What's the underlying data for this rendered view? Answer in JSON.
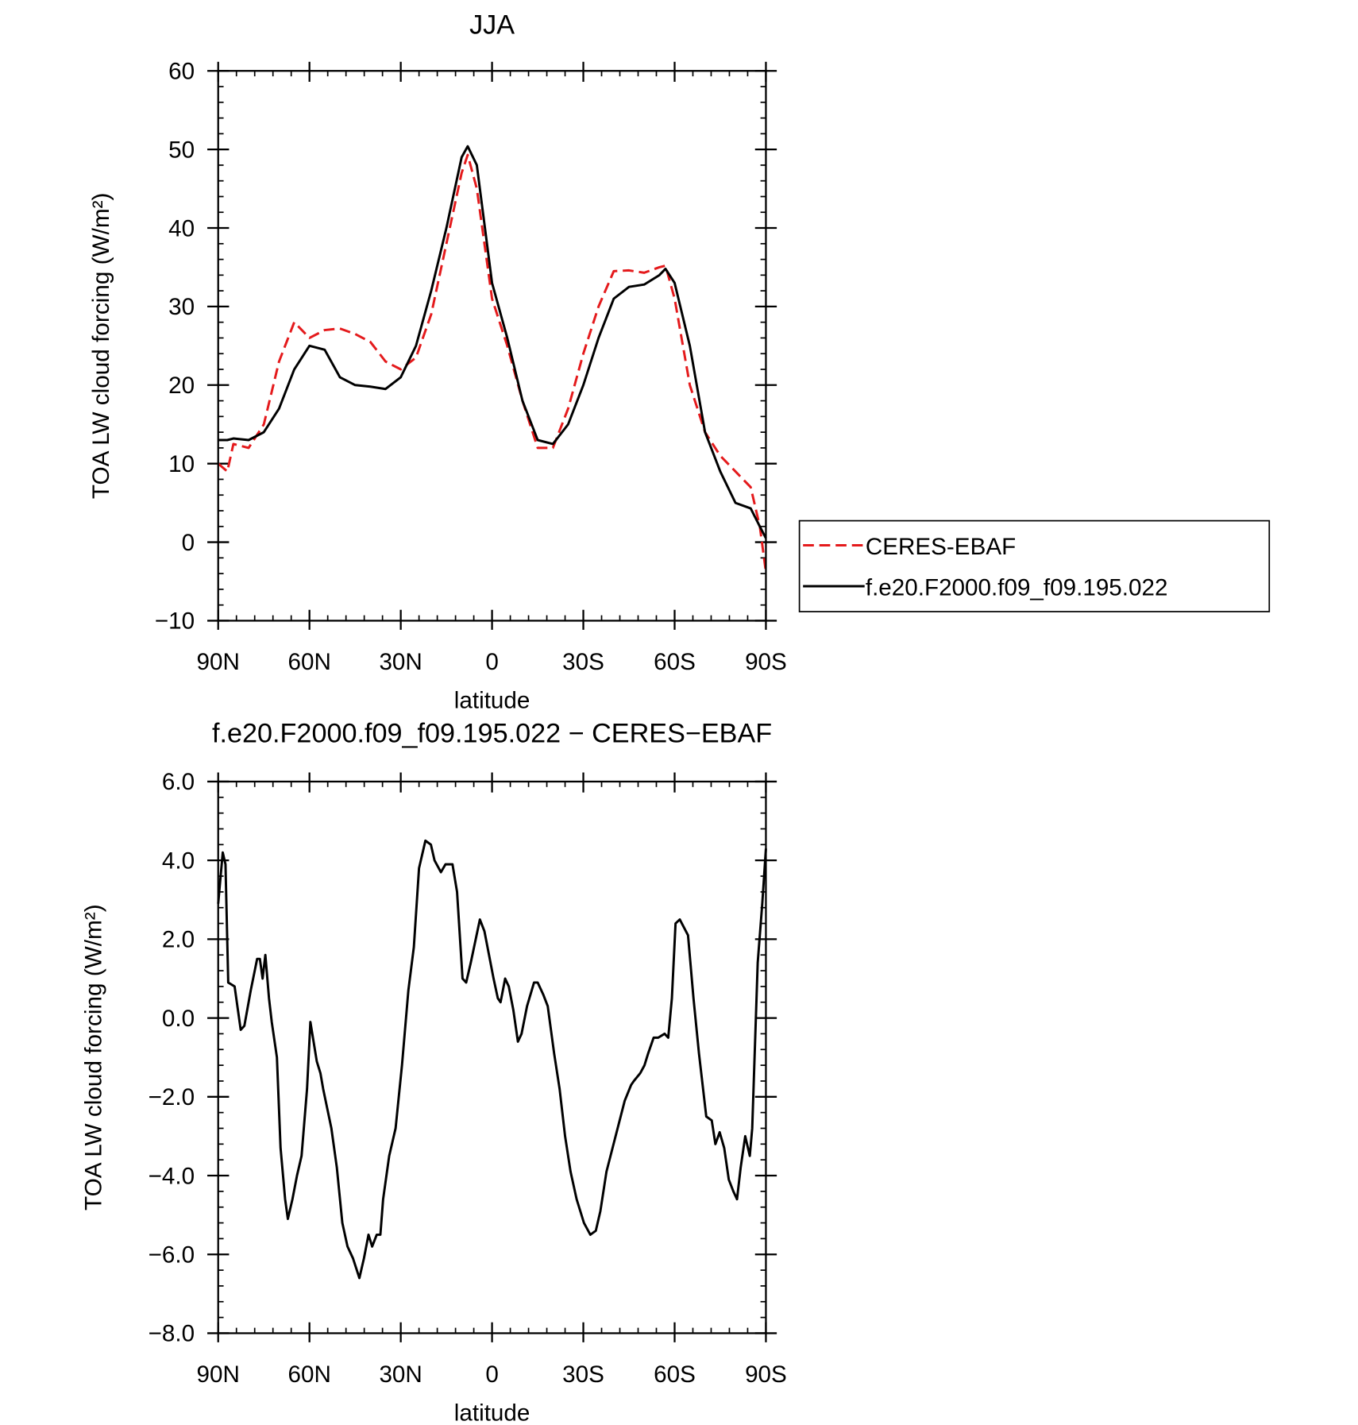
{
  "chart_data": [
    {
      "type": "line",
      "title": "JJA",
      "xlabel": "latitude",
      "ylabel": "TOA LW cloud forcing (W/m²)",
      "x": [
        90,
        87,
        85,
        80,
        75,
        70,
        65,
        60,
        55,
        50,
        45,
        40,
        35,
        30,
        25,
        20,
        15,
        10,
        8,
        5,
        0,
        -5,
        -10,
        -15,
        -20,
        -25,
        -30,
        -35,
        -40,
        -45,
        -50,
        -55,
        -57,
        -60,
        -65,
        -70,
        -75,
        -80,
        -85,
        -88,
        -90
      ],
      "series": [
        {
          "name": "CERES-EBAF",
          "color": "#e41a1c",
          "line_style": "dashed",
          "values": [
            10,
            9,
            12.5,
            12,
            15,
            23,
            28,
            26,
            27,
            27.2,
            26.5,
            25.5,
            23,
            22,
            23.5,
            29,
            38,
            47,
            49.3,
            45,
            31,
            25,
            18,
            12,
            12,
            17,
            24,
            30,
            34.5,
            34.6,
            34.3,
            35,
            35.2,
            31,
            20,
            14,
            11,
            9,
            7,
            2,
            -3.8
          ]
        },
        {
          "name": "f.e20.F2000.f09_f09.195.022",
          "color": "#000000",
          "line_style": "solid",
          "values": [
            13,
            13,
            13.2,
            13,
            14,
            17,
            22,
            25,
            24.5,
            21,
            20,
            19.8,
            19.5,
            21,
            25,
            32,
            40,
            49,
            50.4,
            48,
            33,
            26,
            18,
            13,
            12.5,
            15,
            20,
            26,
            31,
            32.5,
            32.8,
            34,
            34.8,
            33,
            25,
            14,
            9,
            5,
            4.3,
            2,
            0.5
          ]
        }
      ],
      "xlim": [
        90,
        -90
      ],
      "xticks": [
        {
          "value": 90,
          "label": "90N"
        },
        {
          "value": 60,
          "label": "60N"
        },
        {
          "value": 30,
          "label": "30N"
        },
        0,
        {
          "value": -30,
          "label": "30S"
        },
        {
          "value": -60,
          "label": "60S"
        },
        {
          "value": -90,
          "label": "90S"
        }
      ],
      "ylim": [
        -10,
        60
      ],
      "yticks": [
        {
          "value": -10,
          "label": "−10"
        },
        0,
        10,
        20,
        30,
        40,
        50,
        60
      ],
      "legend": "outside-right"
    },
    {
      "type": "line",
      "title": "f.e20.F2000.f09_f09.195.022 − CERES−EBAF",
      "xlabel": "latitude",
      "ylabel": "TOA LW cloud forcing (W/m²)",
      "x": [
        90,
        88.5,
        87.6,
        86.7,
        84.6,
        82.6,
        81.4,
        79.3,
        77.2,
        76.3,
        75.4,
        74.5,
        73.3,
        72.4,
        70.7,
        69.5,
        68,
        67.1,
        65.6,
        64.1,
        62.6,
        60.8,
        59.7,
        57.6,
        56.4,
        55.5,
        52.8,
        51,
        49.2,
        47.5,
        45.7,
        43.6,
        42.1,
        40.6,
        39.4,
        37.9,
        36.7,
        35.8,
        33.8,
        31.7,
        29.6,
        27.5,
        25.7,
        24,
        21.9,
        20.1,
        18.9,
        16.8,
        15.3,
        13,
        11.5,
        9.7,
        8.5,
        7,
        4,
        2.5,
        1,
        -0.5,
        -1.9,
        -2.8,
        -4.3,
        -5.5,
        -7,
        -8.5,
        -9.7,
        -11.5,
        -13.8,
        -15,
        -16.8,
        -18.3,
        -20.4,
        -22.2,
        -24,
        -25.8,
        -27.8,
        -30.2,
        -32.3,
        -34.1,
        -35.6,
        -37.6,
        -40.6,
        -43.6,
        -45.7,
        -46.6,
        -48.7,
        -50.1,
        -51.3,
        -53.1,
        -54.6,
        -56.7,
        -57.9,
        -59.1,
        -60.3,
        -61.7,
        -64.4,
        -66.2,
        -68,
        -70.4,
        -72.2,
        -73.4,
        -74.8,
        -76.3,
        -77.8,
        -79.3,
        -80.5,
        -81.7,
        -83.2,
        -84.7,
        -85.5,
        -87.3,
        -88.8,
        -90
      ],
      "series": [
        {
          "name": "f.e20.F2000.f09_f09.195.022 − CERES−EBAF",
          "color": "#000000",
          "line_style": "solid",
          "values": [
            2.9,
            4.2,
            3.9,
            0.9,
            0.8,
            -0.3,
            -0.2,
            0.7,
            1.5,
            1.5,
            1.0,
            1.6,
            0.5,
            -0.1,
            -1.0,
            -3.3,
            -4.6,
            -5.1,
            -4.6,
            -4.0,
            -3.5,
            -1.8,
            -0.1,
            -1.1,
            -1.4,
            -1.8,
            -2.8,
            -3.8,
            -5.2,
            -5.8,
            -6.1,
            -6.6,
            -6.1,
            -5.5,
            -5.8,
            -5.5,
            -5.5,
            -4.6,
            -3.5,
            -2.8,
            -1.2,
            0.7,
            1.8,
            3.8,
            4.5,
            4.4,
            4.0,
            3.7,
            3.9,
            3.9,
            3.2,
            1.0,
            0.9,
            1.4,
            2.5,
            2.2,
            1.6,
            1.0,
            0.5,
            0.4,
            1.0,
            0.8,
            0.2,
            -0.6,
            -0.4,
            0.3,
            0.9,
            0.9,
            0.6,
            0.3,
            -0.9,
            -1.8,
            -3.0,
            -3.9,
            -4.6,
            -5.2,
            -5.5,
            -5.4,
            -4.9,
            -3.9,
            -3.0,
            -2.1,
            -1.7,
            -1.6,
            -1.4,
            -1.2,
            -0.9,
            -0.5,
            -0.5,
            -0.4,
            -0.5,
            0.5,
            2.4,
            2.5,
            2.1,
            0.5,
            -0.9,
            -2.5,
            -2.6,
            -3.2,
            -2.9,
            -3.3,
            -4.1,
            -4.4,
            -4.6,
            -3.8,
            -3.0,
            -3.5,
            -2.8,
            1.4,
            2.9,
            4.3
          ]
        }
      ],
      "xlim": [
        90,
        -90
      ],
      "xticks": [
        {
          "value": 90,
          "label": "90N"
        },
        {
          "value": 60,
          "label": "60N"
        },
        {
          "value": 30,
          "label": "30N"
        },
        0,
        {
          "value": -30,
          "label": "30S"
        },
        {
          "value": -60,
          "label": "60S"
        },
        {
          "value": -90,
          "label": "90S"
        }
      ],
      "ylim": [
        -8,
        6
      ],
      "yticks": [
        {
          "value": -8,
          "label": "−8.0"
        },
        {
          "value": -6,
          "label": "−6.0"
        },
        {
          "value": -4,
          "label": "−4.0"
        },
        {
          "value": -2,
          "label": "−2.0"
        },
        {
          "value": 0,
          "label": "0.0"
        },
        {
          "value": 2,
          "label": "2.0"
        },
        {
          "value": 4,
          "label": "4.0"
        },
        {
          "value": 6,
          "label": "6.0"
        }
      ]
    }
  ]
}
